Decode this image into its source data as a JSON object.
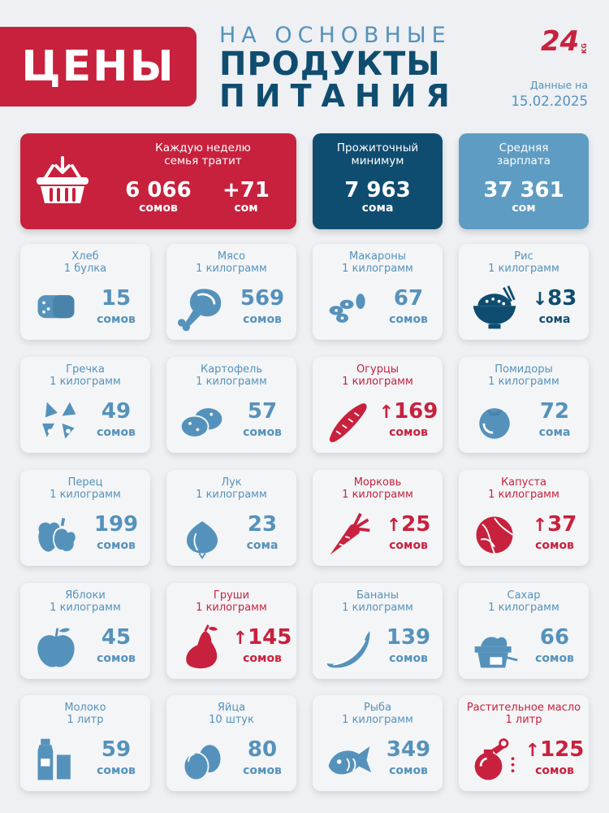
{
  "header": {
    "title": "ЦЕНЫ",
    "line1": "НА ОСНОВНЫЕ",
    "line2": "ПРОДУКТЫ",
    "line3": "ПИТАНИЯ",
    "logo": "24 KG",
    "date_label": "Данные на",
    "date_value": "15.02.2025"
  },
  "stats": {
    "weekly": {
      "caption1": "Каждую неделю",
      "caption2": "семья тратит",
      "value": "6 066",
      "unit": "сомов",
      "delta": "+71",
      "delta_unit": "сом",
      "icon": "basket-icon"
    },
    "minimum": {
      "caption1": "Прожиточный",
      "caption2": "минимум",
      "value": "7 963",
      "unit": "сома"
    },
    "salary": {
      "caption1": "Средняя",
      "caption2": "зарплата",
      "value": "37 361",
      "unit": "сом"
    }
  },
  "products": [
    {
      "name": "Хлеб",
      "qty": "1 булка",
      "price": "15",
      "unit": "сомов",
      "trend": "none",
      "icon": "bread-icon"
    },
    {
      "name": "Мясо",
      "qty": "1 килограмм",
      "price": "569",
      "unit": "сомов",
      "trend": "none",
      "icon": "meat-icon"
    },
    {
      "name": "Макароны",
      "qty": "1 килограмм",
      "price": "67",
      "unit": "сомов",
      "trend": "none",
      "icon": "pasta-icon"
    },
    {
      "name": "Рис",
      "qty": "1 килограмм",
      "price": "83",
      "unit": "сома",
      "trend": "down",
      "icon": "rice-icon"
    },
    {
      "name": "Гречка",
      "qty": "1 килограмм",
      "price": "49",
      "unit": "сомов",
      "trend": "none",
      "icon": "buckwheat-icon"
    },
    {
      "name": "Картофель",
      "qty": "1 килограмм",
      "price": "57",
      "unit": "сомов",
      "trend": "none",
      "icon": "potato-icon"
    },
    {
      "name": "Огурцы",
      "qty": "1 килограмм",
      "price": "169",
      "unit": "сомов",
      "trend": "up",
      "icon": "cucumber-icon"
    },
    {
      "name": "Помидоры",
      "qty": "1 килограмм",
      "price": "72",
      "unit": "сома",
      "trend": "none",
      "icon": "tomato-icon"
    },
    {
      "name": "Перец",
      "qty": "1 килограмм",
      "price": "199",
      "unit": "сомов",
      "trend": "none",
      "icon": "pepper-icon"
    },
    {
      "name": "Лук",
      "qty": "1 килограмм",
      "price": "23",
      "unit": "сома",
      "trend": "none",
      "icon": "onion-icon"
    },
    {
      "name": "Морковь",
      "qty": "1 килограмм",
      "price": "25",
      "unit": "сомов",
      "trend": "up",
      "icon": "carrot-icon"
    },
    {
      "name": "Капуста",
      "qty": "1 килограмм",
      "price": "37",
      "unit": "сомов",
      "trend": "up",
      "icon": "cabbage-icon"
    },
    {
      "name": "Яблоки",
      "qty": "1 килограмм",
      "price": "45",
      "unit": "сомов",
      "trend": "none",
      "icon": "apple-icon"
    },
    {
      "name": "Груши",
      "qty": "1 килограмм",
      "price": "145",
      "unit": "сомов",
      "trend": "up",
      "icon": "pear-icon"
    },
    {
      "name": "Бананы",
      "qty": "1 килограмм",
      "price": "139",
      "unit": "сомов",
      "trend": "none",
      "icon": "banana-icon"
    },
    {
      "name": "Сахар",
      "qty": "1 килограмм",
      "price": "66",
      "unit": "сомов",
      "trend": "none",
      "icon": "sugar-icon"
    },
    {
      "name": "Молоко",
      "qty": "1 литр",
      "price": "59",
      "unit": "сомов",
      "trend": "none",
      "icon": "milk-icon"
    },
    {
      "name": "Яйца",
      "qty": "10 штук",
      "price": "80",
      "unit": "сомов",
      "trend": "none",
      "icon": "eggs-icon"
    },
    {
      "name": "Рыба",
      "qty": "1 килограмм",
      "price": "349",
      "unit": "сомов",
      "trend": "none",
      "icon": "fish-icon"
    },
    {
      "name": "Растительное масло",
      "qty": "1 литр",
      "price": "125",
      "unit": "сомов",
      "trend": "up",
      "icon": "oil-icon"
    }
  ],
  "colors": {
    "up": "#c8213d",
    "down": "#0f4d70",
    "neutral": "#5592bb",
    "background": "#eef0f3"
  }
}
